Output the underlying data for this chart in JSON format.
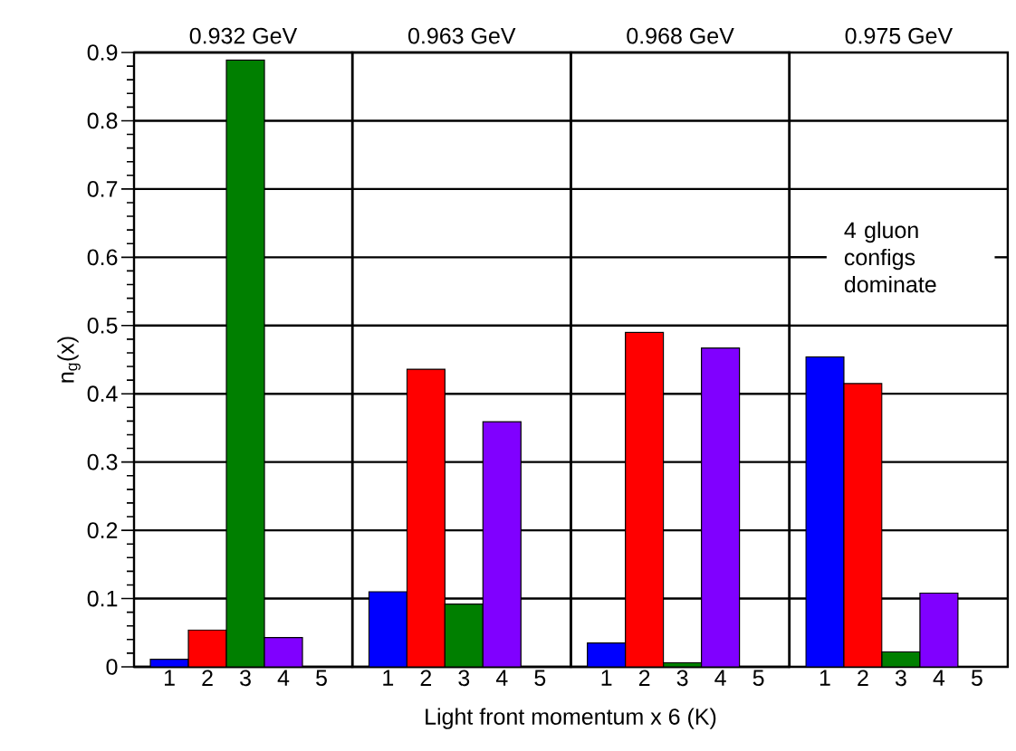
{
  "chart_data": [
    {
      "type": "bar",
      "title": "0.932 GeV",
      "ylabel": "n$_{g}$(x)",
      "xlabel": "Light front momentum x 6 (K)",
      "categories": [
        "1",
        "2",
        "3",
        "4",
        "5"
      ],
      "values": [
        0.011,
        0.054,
        0.889,
        0.043,
        0
      ],
      "colors": [
        "#0000ff",
        "#ff0000",
        "#007f00",
        "#8000ff",
        "#000000"
      ],
      "ylim": [
        0,
        0.9
      ],
      "yticks": [
        0,
        0.1,
        0.2,
        0.3,
        0.4,
        0.5,
        0.6,
        0.7,
        0.8,
        0.9
      ],
      "grid": "y"
    },
    {
      "type": "bar",
      "title": "0.963 GeV",
      "categories": [
        "1",
        "2",
        "3",
        "4",
        "5"
      ],
      "values": [
        0.11,
        0.436,
        0.092,
        0.359,
        0
      ],
      "colors": [
        "#0000ff",
        "#ff0000",
        "#007f00",
        "#8000ff",
        "#000000"
      ],
      "ylim": [
        0,
        0.9
      ],
      "yticks": [
        0,
        0.1,
        0.2,
        0.3,
        0.4,
        0.5,
        0.6,
        0.7,
        0.8,
        0.9
      ],
      "grid": "y",
      "tick_labels": "x"
    },
    {
      "type": "bar",
      "title": "0.968 GeV",
      "categories": [
        "1",
        "2",
        "3",
        "4",
        "5"
      ],
      "values": [
        0.035,
        0.49,
        0.006,
        0.467,
        0
      ],
      "colors": [
        "#0000ff",
        "#ff0000",
        "#007f00",
        "#8000ff",
        "#000000"
      ],
      "ylim": [
        0,
        0.9
      ],
      "yticks": [
        0,
        0.1,
        0.2,
        0.3,
        0.4,
        0.5,
        0.6,
        0.7,
        0.8,
        0.9
      ],
      "grid": "y",
      "tick_labels": "x"
    },
    {
      "type": "bar",
      "title": "0.975 GeV",
      "categories": [
        "1",
        "2",
        "3",
        "4",
        "5"
      ],
      "values": [
        0.454,
        0.415,
        0.022,
        0.108,
        0
      ],
      "colors": [
        "#0000ff",
        "#ff0000",
        "#007f00",
        "#8000ff",
        "#000000"
      ],
      "ylim": [
        0,
        0.9
      ],
      "yticks": [
        0,
        0.1,
        0.2,
        0.3,
        0.4,
        0.5,
        0.6,
        0.7,
        0.8,
        0.9
      ],
      "grid": "y",
      "tick_labels": "x",
      "annotations": [
        "4 gluon configs dominate"
      ]
    }
  ]
}
